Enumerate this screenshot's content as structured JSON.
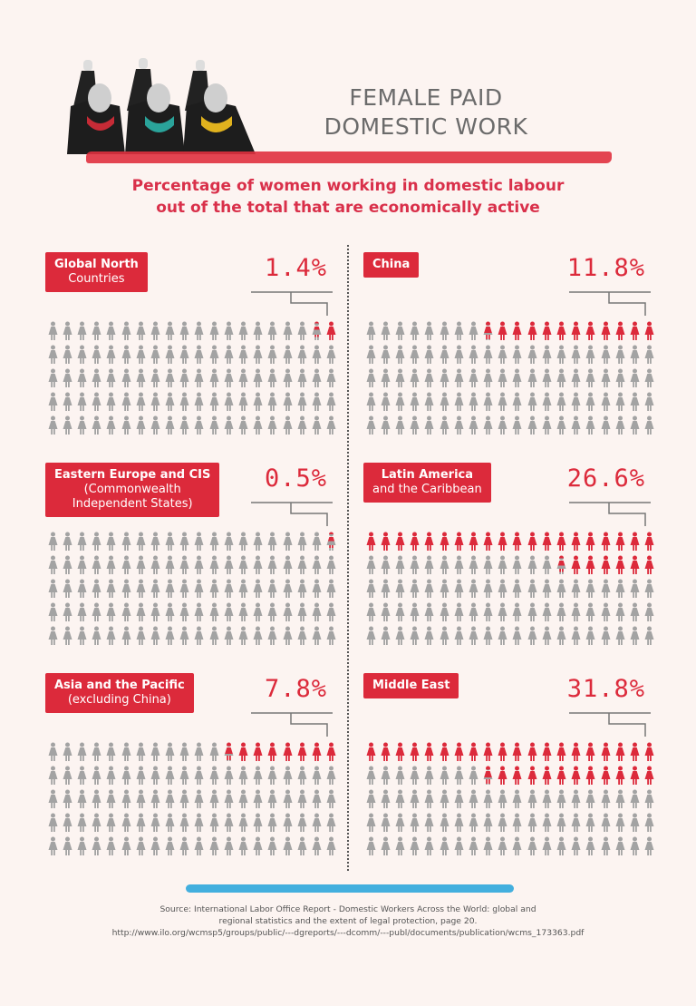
{
  "header": {
    "title_line1": "FEMALE PAID",
    "title_line2": "DOMESTIC WORK",
    "subtitle_line1": "Percentage of women working in domestic labour",
    "subtitle_line2": "out of the total that are economically active"
  },
  "colors": {
    "accent": "#dc2a3b",
    "icon_gray": "#a3a3a3",
    "background": "#fcf4f1",
    "blue_brush": "#2fa7dc"
  },
  "chart_data": {
    "type": "pictogram",
    "icons_per_panel": 100,
    "grid": "5 rows x 20",
    "icon": "woman-icon",
    "panels": [
      {
        "label_line1": "Global North",
        "label_line2": "Countries",
        "value": 1.4,
        "value_label": "1.4%"
      },
      {
        "label_line1": "China",
        "label_line2": "",
        "value": 11.8,
        "value_label": "11.8%"
      },
      {
        "label_line1": "Eastern Europe and CIS",
        "label_line2": "(Commonwealth",
        "label_line3": "Independent States)",
        "value": 0.5,
        "value_label": "0.5%"
      },
      {
        "label_line1": "Latin America",
        "label_line2": "and the Caribbean",
        "value": 26.6,
        "value_label": "26.6%"
      },
      {
        "label_line1": "Asia and the Pacific",
        "label_line2": "(excluding China)",
        "value": 7.8,
        "value_label": "7.8%"
      },
      {
        "label_line1": "Middle East",
        "label_line2": "",
        "value": 31.8,
        "value_label": "31.8%"
      }
    ]
  },
  "source": {
    "line1": "Source:  International Labor Office Report - Domestic Workers Across the World: global and",
    "line2": "regional statistics and the extent of legal protection, page 20.",
    "line3": "http://www.ilo.org/wcmsp5/groups/public/---dgreports/---dcomm/---publ/documents/publication/wcms_173363.pdf"
  }
}
